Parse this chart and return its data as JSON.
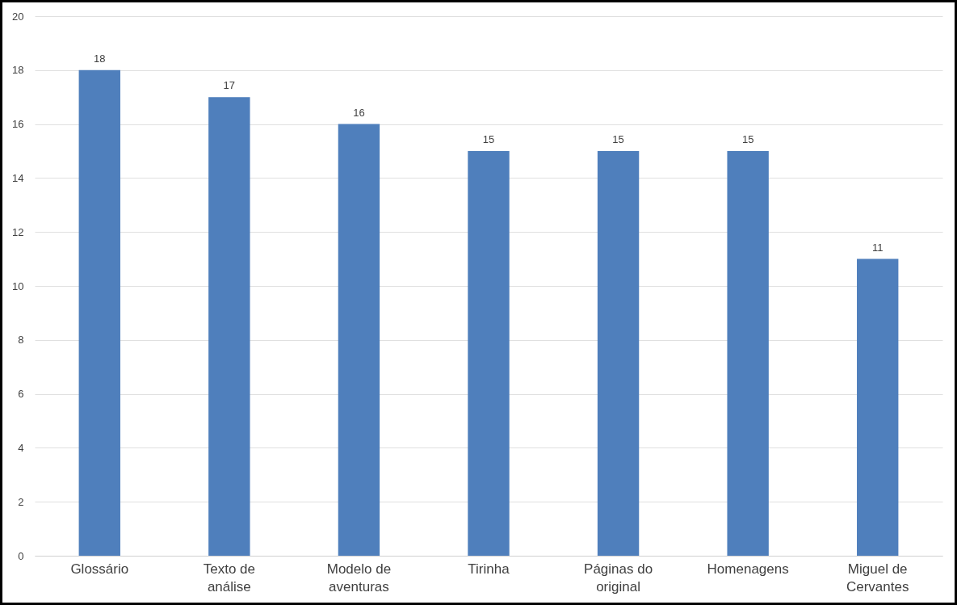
{
  "chart_data": {
    "type": "bar",
    "categories": [
      "Glossário",
      "Texto de análise",
      "Modelo de aventuras",
      "Tirinha",
      "Páginas do original",
      "Homenagens",
      "Miguel de Cervantes"
    ],
    "values": [
      18,
      17,
      16,
      15,
      15,
      15,
      11
    ],
    "color": "#4f7fbc",
    "ylim": [
      0,
      20
    ],
    "yticks": [
      0,
      2,
      4,
      6,
      8,
      10,
      12,
      14,
      16,
      18,
      20
    ],
    "grid": "y",
    "data_labels": true
  }
}
